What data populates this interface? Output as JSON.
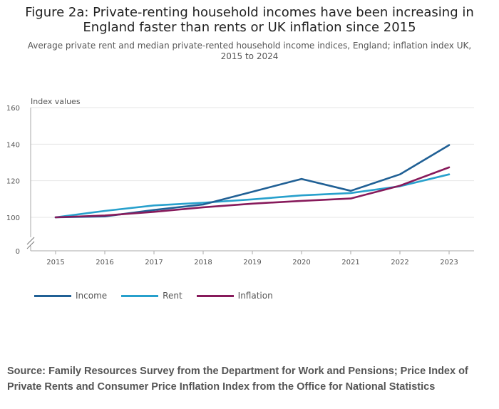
{
  "page": {
    "title": "Figure 2a: Private-renting household incomes have been increasing in England faster than rents or UK inflation since 2015",
    "subtitle": "Average private rent and median private-rented household income indices, England; inflation index UK, 2015 to 2024",
    "source": "Source: Family Resources Survey from the Department for Work and Pensions; Price Index of Private Rents and Consumer Price Inflation Index from the Office for National Statistics"
  },
  "chart_data": {
    "type": "line",
    "title": "Figure 2a: Private-renting household incomes have been increasing in England faster than rents or UK inflation since 2015",
    "subtitle": "Average private rent and median private-rented household income indices, England; inflation index UK, 2015 to 2024",
    "ylabel": "Index values",
    "xlabel": "",
    "x": [
      "2015",
      "2016",
      "2017",
      "2018",
      "2019",
      "2020",
      "2021",
      "2022",
      "2023"
    ],
    "yticks": [
      "0",
      "100",
      "120",
      "140",
      "160"
    ],
    "ylim": [
      0,
      160
    ],
    "axis_break": "between 0 and 100",
    "grid": "horizontal",
    "legend_position": "bottom-left",
    "series": [
      {
        "name": "Income",
        "color": "#206095",
        "values": [
          100,
          100.5,
          104,
          107,
          114,
          121,
          114.5,
          123.5,
          139.5
        ]
      },
      {
        "name": "Rent",
        "color": "#27a0cc",
        "values": [
          100,
          103.5,
          106.5,
          108,
          109.8,
          112,
          113.3,
          117,
          123.5
        ]
      },
      {
        "name": "Inflation",
        "color": "#871a5b",
        "values": [
          100,
          101,
          103,
          105.5,
          107.5,
          109,
          110.3,
          117.3,
          127.3
        ]
      }
    ]
  }
}
